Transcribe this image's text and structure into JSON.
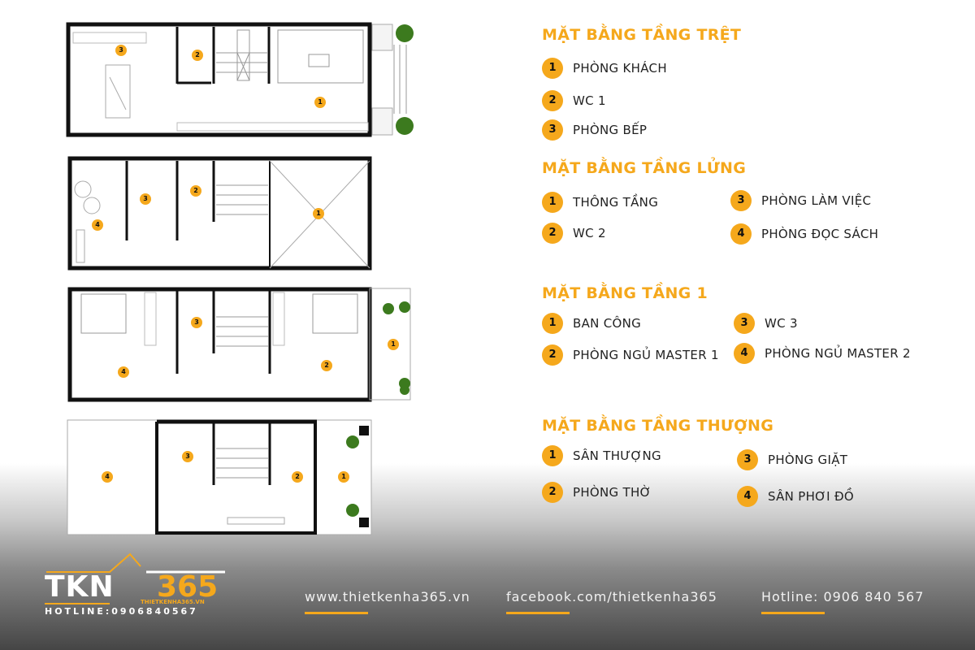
{
  "plans": [
    {
      "markers": [
        "1",
        "2",
        "3"
      ]
    },
    {
      "markers": [
        "1",
        "2",
        "3",
        "4"
      ]
    },
    {
      "markers": [
        "1",
        "2",
        "3",
        "4"
      ]
    },
    {
      "markers": [
        "1",
        "2",
        "3",
        "4"
      ]
    }
  ],
  "sections": [
    {
      "title": "MẶT BẰNG TẦNG TRỆT",
      "items": [
        {
          "n": "1",
          "label": "PHÒNG KHÁCH"
        },
        {
          "n": "2",
          "label": "WC 1"
        },
        {
          "n": "3",
          "label": "PHÒNG BẾP"
        }
      ]
    },
    {
      "title": "MẶT BẰNG TẦNG LỬNG",
      "items": [
        {
          "n": "1",
          "label": "THÔNG TẦNG"
        },
        {
          "n": "2",
          "label": "WC 2"
        },
        {
          "n": "3",
          "label": "PHÒNG LÀM VIỆC"
        },
        {
          "n": "4",
          "label": "PHÒNG ĐỌC SÁCH"
        }
      ]
    },
    {
      "title": "MẶT BẰNG TẦNG 1",
      "items": [
        {
          "n": "1",
          "label": "BAN CÔNG"
        },
        {
          "n": "2",
          "label": "PHÒNG NGỦ MASTER 1"
        },
        {
          "n": "3",
          "label": "WC 3"
        },
        {
          "n": "4",
          "label": "PHÒNG NGỦ MASTER 2"
        }
      ]
    },
    {
      "title": "MẶT BẰNG TẦNG THƯỢNG",
      "items": [
        {
          "n": "1",
          "label": "SÂN THƯỢNG"
        },
        {
          "n": "2",
          "label": "PHÒNG THỜ"
        },
        {
          "n": "3",
          "label": "PHÒNG GIẶT"
        },
        {
          "n": "4",
          "label": "SÂN PHƠI ĐỒ"
        }
      ]
    }
  ],
  "logo": {
    "text": "TKN",
    "num": "365",
    "site": "THIETKENHA365.VN",
    "hotline": "HOTLINE:0906840567"
  },
  "footer": {
    "website": "www.thietkenha365.vn",
    "facebook": "facebook.com/thietkenha365",
    "hotline": "Hotline: 0906 840 567"
  },
  "colors": {
    "accent": "#f5a81c",
    "wall": "#111111"
  }
}
